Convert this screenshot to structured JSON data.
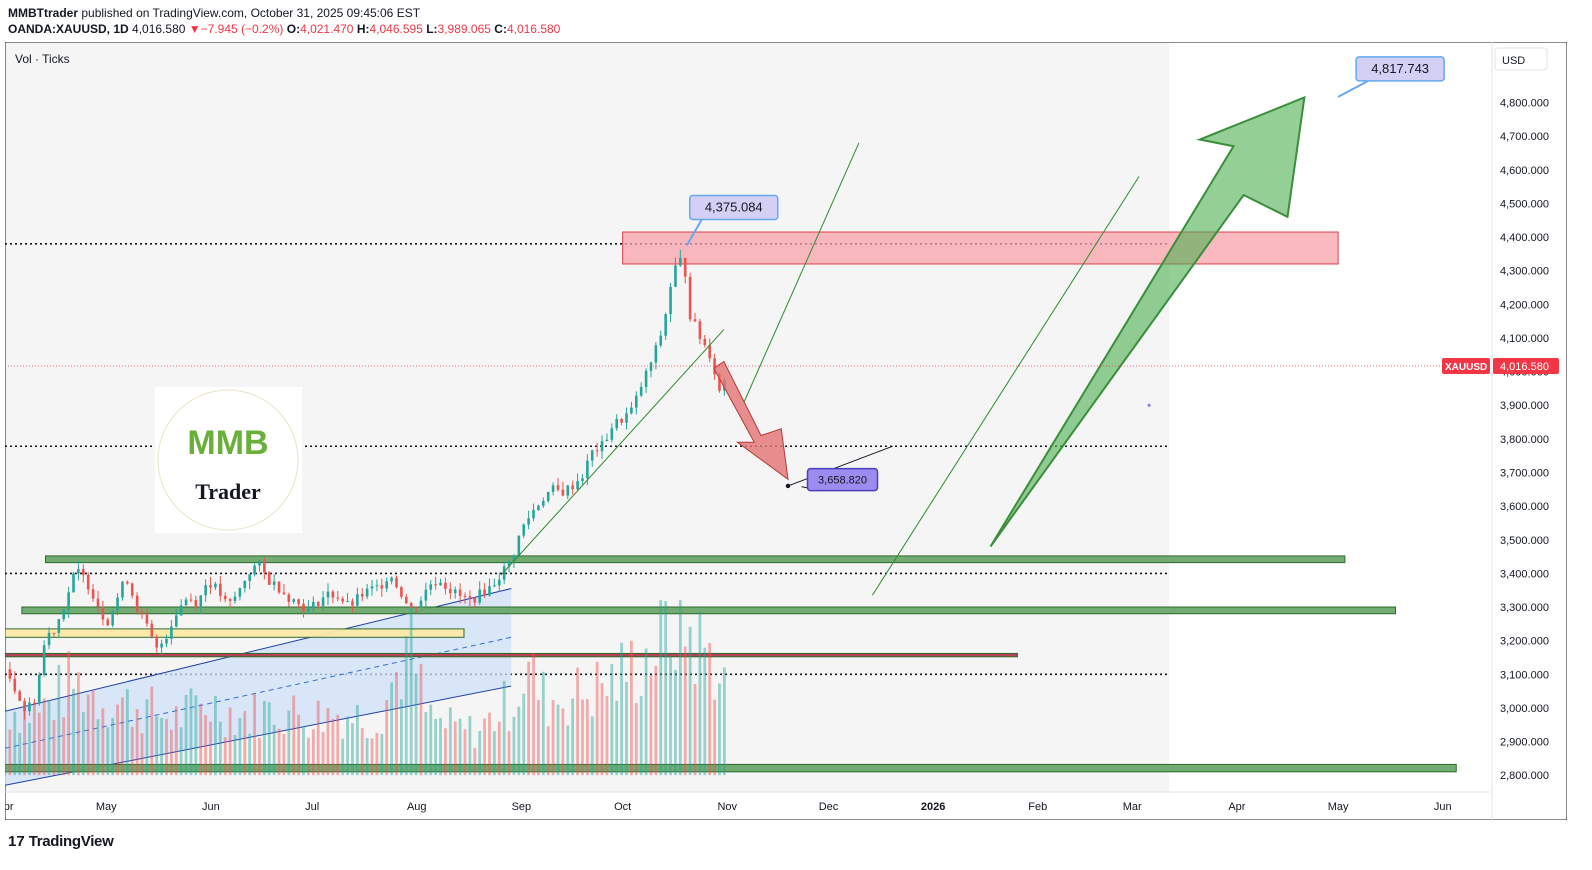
{
  "header": {
    "author": "MMBTtrader",
    "published": "published on TradingView.com, October 31, 2025 09:45:06 EST",
    "symbol": "OANDA:XAUUSD, 1D",
    "last": "4,016.580",
    "arrow": "▼",
    "change": "−7.945 (−0.2%)",
    "o_label": "O:",
    "o_value": "4,021.470",
    "h_label": "H:",
    "h_value": "4,046.595",
    "l_label": "L:",
    "l_value": "3,989.065",
    "c_label": "C:",
    "c_value": "4,016.580"
  },
  "footer": {
    "brand": "TradingView",
    "mark": "17"
  },
  "chart_data": {
    "type": "candlestick",
    "symbol": "XAUUSD",
    "timeframe": "1D",
    "indicator_label": "Vol · Ticks",
    "currency": "USD",
    "ylim": [
      2750,
      4980
    ],
    "y_ticks": [
      2800,
      2900,
      3000,
      3100,
      3200,
      3300,
      3400,
      3500,
      3600,
      3700,
      3800,
      3900,
      4000,
      4100,
      4200,
      4300,
      4400,
      4500,
      4600,
      4700,
      4800
    ],
    "y_tick_labels": [
      "2,800.000",
      "2,900.000",
      "3,000.000",
      "3,100.000",
      "3,200.000",
      "3,300.000",
      "3,400.000",
      "3,500.000",
      "3,600.000",
      "3,700.000",
      "3,800.000",
      "3,900.000",
      "4,000.000",
      "4,100.000",
      "4,200.000",
      "4,300.000",
      "4,400.000",
      "4,500.000",
      "4,600.000",
      "4,700.000",
      "4,800.000"
    ],
    "x_labels": [
      "Apr",
      "May",
      "Jun",
      "Jul",
      "Aug",
      "Sep",
      "Oct",
      "Nov",
      "Dec",
      "2026",
      "Feb",
      "Mar",
      "Apr",
      "May",
      "Jun"
    ],
    "x_label_days": [
      0,
      30,
      61,
      91,
      122,
      153,
      183,
      214,
      244,
      275,
      306,
      334,
      365,
      395,
      426
    ],
    "last_price": 4016.58,
    "last_price_label": "4,016.580",
    "last_symbol_label": "XAUUSD",
    "price_path": [
      [
        0,
        3115
      ],
      [
        3,
        3060
      ],
      [
        6,
        2990
      ],
      [
        9,
        3030
      ],
      [
        12,
        3210
      ],
      [
        15,
        3240
      ],
      [
        18,
        3320
      ],
      [
        21,
        3410
      ],
      [
        24,
        3380
      ],
      [
        27,
        3320
      ],
      [
        30,
        3250
      ],
      [
        33,
        3320
      ],
      [
        36,
        3390
      ],
      [
        39,
        3300
      ],
      [
        42,
        3240
      ],
      [
        45,
        3170
      ],
      [
        48,
        3220
      ],
      [
        51,
        3290
      ],
      [
        54,
        3330
      ],
      [
        57,
        3310
      ],
      [
        60,
        3380
      ],
      [
        63,
        3350
      ],
      [
        66,
        3300
      ],
      [
        69,
        3340
      ],
      [
        72,
        3400
      ],
      [
        75,
        3430
      ],
      [
        78,
        3380
      ],
      [
        81,
        3360
      ],
      [
        84,
        3330
      ],
      [
        87,
        3310
      ],
      [
        90,
        3290
      ],
      [
        93,
        3320
      ],
      [
        96,
        3340
      ],
      [
        99,
        3330
      ],
      [
        102,
        3300
      ],
      [
        105,
        3330
      ],
      [
        108,
        3350
      ],
      [
        111,
        3360
      ],
      [
        114,
        3400
      ],
      [
        117,
        3350
      ],
      [
        120,
        3290
      ],
      [
        123,
        3320
      ],
      [
        126,
        3370
      ],
      [
        129,
        3380
      ],
      [
        132,
        3350
      ],
      [
        135,
        3330
      ],
      [
        138,
        3320
      ],
      [
        141,
        3340
      ],
      [
        144,
        3360
      ],
      [
        147,
        3400
      ],
      [
        150,
        3440
      ],
      [
        153,
        3530
      ],
      [
        156,
        3580
      ],
      [
        159,
        3620
      ],
      [
        162,
        3650
      ],
      [
        165,
        3640
      ],
      [
        168,
        3660
      ],
      [
        171,
        3690
      ],
      [
        174,
        3760
      ],
      [
        177,
        3780
      ],
      [
        180,
        3840
      ],
      [
        183,
        3860
      ],
      [
        186,
        3890
      ],
      [
        189,
        3970
      ],
      [
        192,
        4040
      ],
      [
        195,
        4130
      ],
      [
        198,
        4300
      ],
      [
        201,
        4340
      ],
      [
        203,
        4170
      ],
      [
        206,
        4100
      ],
      [
        209,
        4050
      ],
      [
        212,
        3930
      ],
      [
        214,
        4016
      ]
    ],
    "volume_ticks_path": [
      [
        0,
        110
      ],
      [
        10,
        100
      ],
      [
        20,
        150
      ],
      [
        30,
        120
      ],
      [
        40,
        110
      ],
      [
        50,
        90
      ],
      [
        60,
        115
      ],
      [
        70,
        95
      ],
      [
        80,
        105
      ],
      [
        90,
        95
      ],
      [
        100,
        100
      ],
      [
        110,
        90
      ],
      [
        120,
        210
      ],
      [
        125,
        95
      ],
      [
        130,
        80
      ],
      [
        140,
        70
      ],
      [
        150,
        120
      ],
      [
        155,
        170
      ],
      [
        160,
        120
      ],
      [
        170,
        130
      ],
      [
        180,
        150
      ],
      [
        190,
        190
      ],
      [
        195,
        220
      ],
      [
        200,
        255
      ],
      [
        205,
        210
      ],
      [
        210,
        190
      ],
      [
        214,
        130
      ]
    ],
    "horizontal_dotted_levels": [
      4380,
      3778,
      3400,
      3100
    ],
    "zones": [
      {
        "name": "resistance-zone",
        "color": "#f7a1a8",
        "from_day": 183,
        "to_day": 395,
        "top": 4415,
        "bottom": 4320
      },
      {
        "name": "support-zone-upper",
        "color": "#6aa86a",
        "from_day": 12,
        "to_day": 397,
        "top": 3452,
        "bottom": 3432
      },
      {
        "name": "support-zone-mid",
        "color": "#6aa86a",
        "from_day": 5,
        "to_day": 412,
        "top": 3300,
        "bottom": 3280
      },
      {
        "name": "support-zone-low",
        "color": "#6aa86a",
        "from_day": 0,
        "to_day": 430,
        "top": 2832,
        "bottom": 2810
      },
      {
        "name": "yellow-zone",
        "color": "#fde9a6",
        "from_day": 0,
        "to_day": 136,
        "top": 3235,
        "bottom": 3210
      },
      {
        "name": "red-line-zone",
        "color": "#b03a4a",
        "from_day": 0,
        "to_day": 300,
        "top": 3162,
        "bottom": 3152
      }
    ],
    "annotations": [
      {
        "label": "4,375.084",
        "day": 202,
        "price": 4375,
        "style": "callout-blue"
      },
      {
        "label": "3,658.820",
        "day": 236,
        "price": 3658,
        "style": "callout-purple"
      },
      {
        "label": "4,817.743",
        "day": 395,
        "price": 4817,
        "style": "callout-blue"
      }
    ],
    "logo_text": [
      "MMB",
      "Trader"
    ]
  },
  "colors": {
    "up": "#26a69a",
    "down": "#ef5350",
    "price_line": "#f23645",
    "green_arrow": "#4caf50",
    "red_arrow": "#e57373"
  }
}
